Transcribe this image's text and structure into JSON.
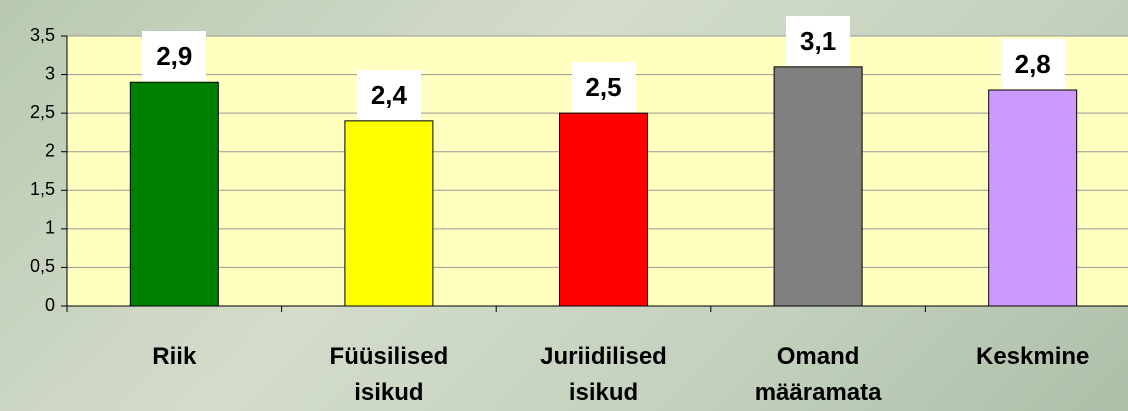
{
  "chart_data": {
    "type": "bar",
    "categories": [
      "Riik",
      "Füüsilised isikud",
      "Juriidilised isikud",
      "Omand määramata",
      "Keskmine"
    ],
    "values": [
      2.9,
      2.4,
      2.5,
      3.1,
      2.8
    ],
    "value_labels": [
      "2,9",
      "2,4",
      "2,5",
      "3,1",
      "2,8"
    ],
    "colors": [
      "#008000",
      "#ffff00",
      "#ff0000",
      "#808080",
      "#cc99ff"
    ],
    "ylim": [
      0,
      3.5
    ],
    "yticks": [
      0,
      {
        "value": 0.5,
        "label": "0,5"
      },
      1,
      {
        "value": 1.5,
        "label": "1,5"
      },
      2,
      {
        "value": 2.5,
        "label": "2,5"
      },
      3,
      {
        "value": 3.5,
        "label": "3,5"
      }
    ],
    "grid": true
  }
}
